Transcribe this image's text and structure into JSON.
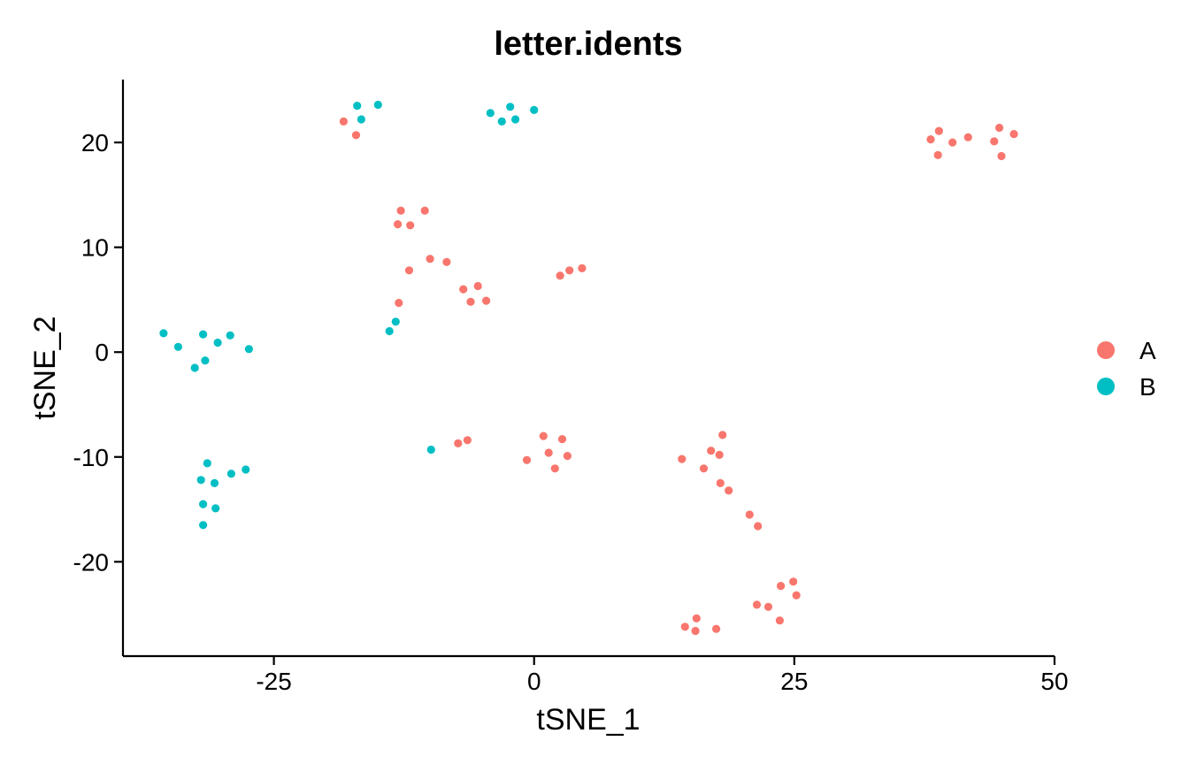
{
  "chart_data": {
    "type": "scatter",
    "title": "letter.idents",
    "xlabel": "tSNE_1",
    "ylabel": "tSNE_2",
    "xlim": [
      -39.5,
      50
    ],
    "ylim": [
      -29,
      26
    ],
    "xticks": [
      -25,
      0,
      25,
      50
    ],
    "yticks": [
      -20,
      -10,
      0,
      10,
      20
    ],
    "grid": false,
    "legend_position": "right",
    "series": [
      {
        "name": "A",
        "color": "#F8766D",
        "points": [
          [
            -18.3,
            22.0
          ],
          [
            -17.1,
            20.7
          ],
          [
            -12.8,
            13.5
          ],
          [
            -10.5,
            13.5
          ],
          [
            -13.1,
            12.2
          ],
          [
            -11.9,
            12.1
          ],
          [
            -10.0,
            8.9
          ],
          [
            -8.4,
            8.6
          ],
          [
            -12.0,
            7.8
          ],
          [
            2.5,
            7.3
          ],
          [
            3.4,
            7.8
          ],
          [
            4.6,
            8.0
          ],
          [
            -6.8,
            6.0
          ],
          [
            -5.4,
            6.3
          ],
          [
            -6.1,
            4.8
          ],
          [
            -4.6,
            4.9
          ],
          [
            -13.0,
            4.7
          ],
          [
            38.1,
            20.3
          ],
          [
            38.9,
            21.1
          ],
          [
            40.2,
            20.0
          ],
          [
            41.7,
            20.5
          ],
          [
            44.2,
            20.1
          ],
          [
            44.7,
            21.4
          ],
          [
            46.1,
            20.8
          ],
          [
            38.8,
            18.8
          ],
          [
            44.9,
            18.7
          ],
          [
            -7.3,
            -8.7
          ],
          [
            -6.4,
            -8.4
          ],
          [
            0.9,
            -8.0
          ],
          [
            2.7,
            -8.3
          ],
          [
            1.4,
            -9.6
          ],
          [
            3.2,
            -9.9
          ],
          [
            -0.7,
            -10.3
          ],
          [
            2.0,
            -11.1
          ],
          [
            18.1,
            -7.9
          ],
          [
            17.0,
            -9.4
          ],
          [
            17.8,
            -9.8
          ],
          [
            14.2,
            -10.2
          ],
          [
            16.3,
            -11.1
          ],
          [
            17.9,
            -12.5
          ],
          [
            18.7,
            -13.2
          ],
          [
            20.7,
            -15.5
          ],
          [
            21.5,
            -16.6
          ],
          [
            24.9,
            -21.9
          ],
          [
            23.7,
            -22.3
          ],
          [
            25.2,
            -23.2
          ],
          [
            21.4,
            -24.1
          ],
          [
            22.5,
            -24.3
          ],
          [
            23.6,
            -25.6
          ],
          [
            15.6,
            -25.4
          ],
          [
            14.5,
            -26.2
          ],
          [
            15.5,
            -26.6
          ],
          [
            17.5,
            -26.4
          ]
        ]
      },
      {
        "name": "B",
        "color": "#00BFC4",
        "points": [
          [
            -17.0,
            23.5
          ],
          [
            -15.0,
            23.6
          ],
          [
            -16.6,
            22.2
          ],
          [
            -4.2,
            22.8
          ],
          [
            -2.3,
            23.4
          ],
          [
            -3.1,
            22.0
          ],
          [
            -1.8,
            22.2
          ],
          [
            0.0,
            23.1
          ],
          [
            -35.6,
            1.8
          ],
          [
            -34.2,
            0.5
          ],
          [
            -31.8,
            1.7
          ],
          [
            -30.4,
            0.9
          ],
          [
            -29.2,
            1.6
          ],
          [
            -27.4,
            0.3
          ],
          [
            -31.6,
            -0.8
          ],
          [
            -32.6,
            -1.5
          ],
          [
            -13.3,
            2.9
          ],
          [
            -13.9,
            2.0
          ],
          [
            -9.9,
            -9.3
          ],
          [
            -31.4,
            -10.6
          ],
          [
            -29.1,
            -11.6
          ],
          [
            -27.7,
            -11.2
          ],
          [
            -32.0,
            -12.2
          ],
          [
            -30.7,
            -12.5
          ],
          [
            -31.8,
            -14.5
          ],
          [
            -30.6,
            -14.9
          ],
          [
            -31.8,
            -16.5
          ]
        ]
      }
    ]
  }
}
